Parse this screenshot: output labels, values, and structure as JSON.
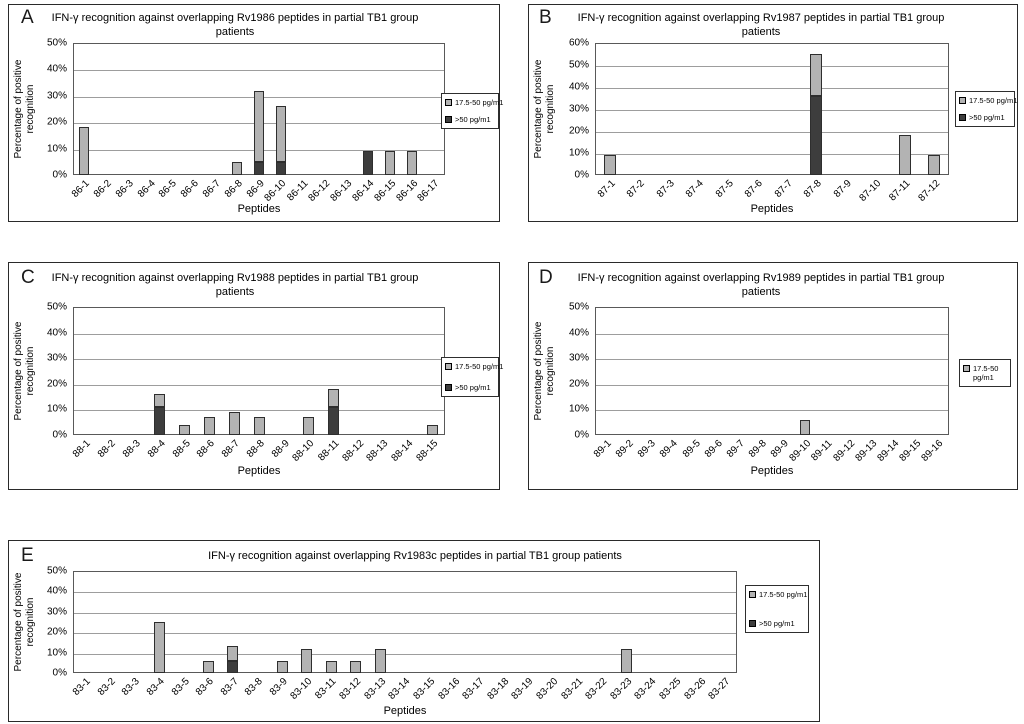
{
  "figure": {
    "background": "#ffffff"
  },
  "colors": {
    "light_series": "#b3b3b3",
    "dark_series": "#3d3d3d",
    "grid": "#9d9d9d"
  },
  "chart_data": [
    {
      "panel_label": "A",
      "type": "bar",
      "stacked": true,
      "title": "IFN-γ recognition against overlapping Rv1986 peptides in partial TB1 group patients",
      "ylabel": "Percentage of positive recognition",
      "xlabel": "Peptides",
      "ylim": [
        0,
        50
      ],
      "yticks": [
        "0%",
        "10%",
        "20%",
        "30%",
        "40%",
        "50%"
      ],
      "grid": true,
      "legend_position": "right",
      "categories": [
        "86-1",
        "86-2",
        "86-3",
        "86-4",
        "86-5",
        "86-6",
        "86-7",
        "86-8",
        "86-9",
        "86-10",
        "86-11",
        "86-12",
        "86-13",
        "86-14",
        "86-15",
        "86-16",
        "86-17"
      ],
      "series": [
        {
          "name": "17.5-50 pg/m1",
          "color": "#b3b3b3",
          "values": [
            18,
            0,
            0,
            0,
            0,
            0,
            0,
            5,
            27,
            21,
            0,
            0,
            0,
            0,
            9,
            9,
            0
          ]
        },
        {
          "name": ">50 pg/m1",
          "color": "#3d3d3d",
          "values": [
            0,
            0,
            0,
            0,
            0,
            0,
            0,
            0,
            5,
            5,
            0,
            0,
            0,
            9,
            0,
            0,
            0
          ]
        }
      ]
    },
    {
      "panel_label": "B",
      "type": "bar",
      "stacked": true,
      "title": "IFN-γ recognition against overlapping Rv1987 peptides in partial TB1 group patients",
      "ylabel": "Percentage of positive recognition",
      "xlabel": "Peptides",
      "ylim": [
        0,
        60
      ],
      "yticks": [
        "0%",
        "10%",
        "20%",
        "30%",
        "40%",
        "50%",
        "60%"
      ],
      "grid": true,
      "legend_position": "right",
      "categories": [
        "87-1",
        "87-2",
        "87-3",
        "87-4",
        "87-5",
        "87-6",
        "87-7",
        "87-8",
        "87-9",
        "87-10",
        "87-11",
        "87-12"
      ],
      "series": [
        {
          "name": "17.5-50 pg/m1",
          "color": "#b3b3b3",
          "values": [
            9,
            0,
            0,
            0,
            0,
            0,
            0,
            19,
            0,
            0,
            18,
            9
          ]
        },
        {
          "name": ">50 pg/m1",
          "color": "#3d3d3d",
          "values": [
            0,
            0,
            0,
            0,
            0,
            0,
            0,
            36,
            0,
            0,
            0,
            0
          ]
        }
      ]
    },
    {
      "panel_label": "C",
      "type": "bar",
      "stacked": true,
      "title": "IFN-γ recognition against overlapping Rv1988 peptides in partial TB1 group patients",
      "ylabel": "Percentage of positive recognition",
      "xlabel": "Peptides",
      "ylim": [
        0,
        50
      ],
      "yticks": [
        "0%",
        "10%",
        "20%",
        "30%",
        "40%",
        "50%"
      ],
      "grid": true,
      "legend_position": "right",
      "categories": [
        "88-1",
        "88-2",
        "88-3",
        "88-4",
        "88-5",
        "88-6",
        "88-7",
        "88-8",
        "88-9",
        "88-10",
        "88-11",
        "88-12",
        "88-13",
        "88-14",
        "88-15"
      ],
      "series": [
        {
          "name": "17.5-50 pg/m1",
          "color": "#b3b3b3",
          "values": [
            0,
            0,
            0,
            5,
            4,
            7,
            9,
            7,
            0,
            7,
            7,
            0,
            0,
            0,
            4
          ]
        },
        {
          "name": ">50 pg/m1",
          "color": "#3d3d3d",
          "values": [
            0,
            0,
            0,
            11,
            0,
            0,
            0,
            0,
            0,
            0,
            11,
            0,
            0,
            0,
            0
          ]
        }
      ]
    },
    {
      "panel_label": "D",
      "type": "bar",
      "stacked": true,
      "title": "IFN-γ recognition against overlapping Rv1989 peptides in partial TB1 group patients",
      "ylabel": "Percentage of positive recognition",
      "xlabel": "Peptides",
      "ylim": [
        0,
        50
      ],
      "yticks": [
        "0%",
        "10%",
        "20%",
        "30%",
        "40%",
        "50%"
      ],
      "grid": true,
      "legend_position": "right",
      "categories": [
        "89-1",
        "89-2",
        "89-3",
        "89-4",
        "89-5",
        "89-6",
        "89-7",
        "89-8",
        "89-9",
        "89-10",
        "89-11",
        "89-12",
        "89-13",
        "89-14",
        "89-15",
        "89-16"
      ],
      "series": [
        {
          "name": "17.5-50 pg/m1",
          "color": "#b3b3b3",
          "values": [
            0,
            0,
            0,
            0,
            0,
            0,
            0,
            0,
            0,
            6,
            0,
            0,
            0,
            0,
            0,
            0
          ]
        }
      ]
    },
    {
      "panel_label": "E",
      "type": "bar",
      "stacked": true,
      "title": "IFN-γ recognition against overlapping Rv1983c peptides in partial TB1 group patients",
      "ylabel": "Percentage of positive recognition",
      "xlabel": "Peptides",
      "ylim": [
        0,
        50
      ],
      "yticks": [
        "0%",
        "10%",
        "20%",
        "30%",
        "40%",
        "50%"
      ],
      "grid": true,
      "legend_position": "right",
      "categories": [
        "83-1",
        "83-2",
        "83-3",
        "83-4",
        "83-5",
        "83-6",
        "83-7",
        "83-8",
        "83-9",
        "83-10",
        "83-11",
        "83-12",
        "83-13",
        "83-14",
        "83-15",
        "83-16",
        "83-17",
        "83-18",
        "83-19",
        "83-20",
        "83-21",
        "83-22",
        "83-23",
        "83-24",
        "83-25",
        "83-26",
        "83-27"
      ],
      "series": [
        {
          "name": "17.5-50 pg/m1",
          "color": "#b3b3b3",
          "values": [
            0,
            0,
            0,
            25,
            0,
            6,
            7,
            0,
            6,
            12,
            6,
            6,
            12,
            0,
            0,
            0,
            0,
            0,
            0,
            0,
            0,
            0,
            12,
            0,
            0,
            0,
            0
          ]
        },
        {
          "name": ">50 pg/m1",
          "color": "#3d3d3d",
          "values": [
            0,
            0,
            0,
            0,
            0,
            0,
            6,
            0,
            0,
            0,
            0,
            0,
            0,
            0,
            0,
            0,
            0,
            0,
            0,
            0,
            0,
            0,
            0,
            0,
            0,
            0,
            0
          ]
        }
      ]
    }
  ]
}
